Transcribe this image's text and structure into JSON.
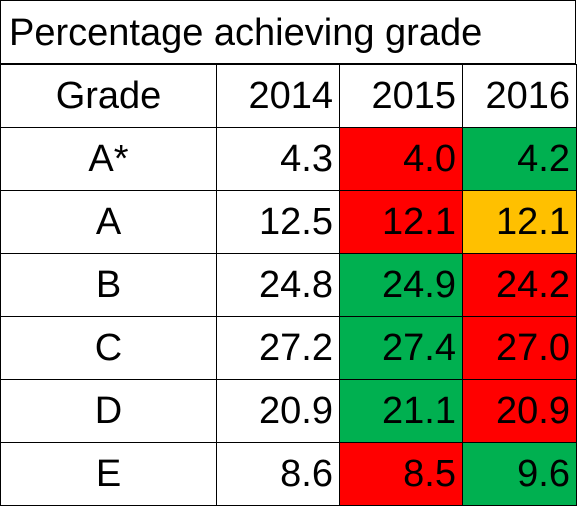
{
  "title": "Percentage achieving grade",
  "colors": {
    "red": "#FF0000",
    "green": "#00B050",
    "amber": "#FFC000",
    "none": "#FFFFFF"
  },
  "headers": [
    "Grade",
    "2014",
    "2015",
    "2016"
  ],
  "rows": [
    {
      "grade": "A*",
      "y2014": "4.3",
      "y2015": "4.0",
      "y2016": "4.2",
      "fill2015": "red",
      "fill2016": "green"
    },
    {
      "grade": "A",
      "y2014": "12.5",
      "y2015": "12.1",
      "y2016": "12.1",
      "fill2015": "red",
      "fill2016": "amber"
    },
    {
      "grade": "B",
      "y2014": "24.8",
      "y2015": "24.9",
      "y2016": "24.2",
      "fill2015": "green",
      "fill2016": "red"
    },
    {
      "grade": "C",
      "y2014": "27.2",
      "y2015": "27.4",
      "y2016": "27.0",
      "fill2015": "green",
      "fill2016": "red"
    },
    {
      "grade": "D",
      "y2014": "20.9",
      "y2015": "21.1",
      "y2016": "20.9",
      "fill2015": "green",
      "fill2016": "red"
    },
    {
      "grade": "E",
      "y2014": "8.6",
      "y2015": "8.5",
      "y2016": "9.6",
      "fill2015": "red",
      "fill2016": "green"
    }
  ]
}
